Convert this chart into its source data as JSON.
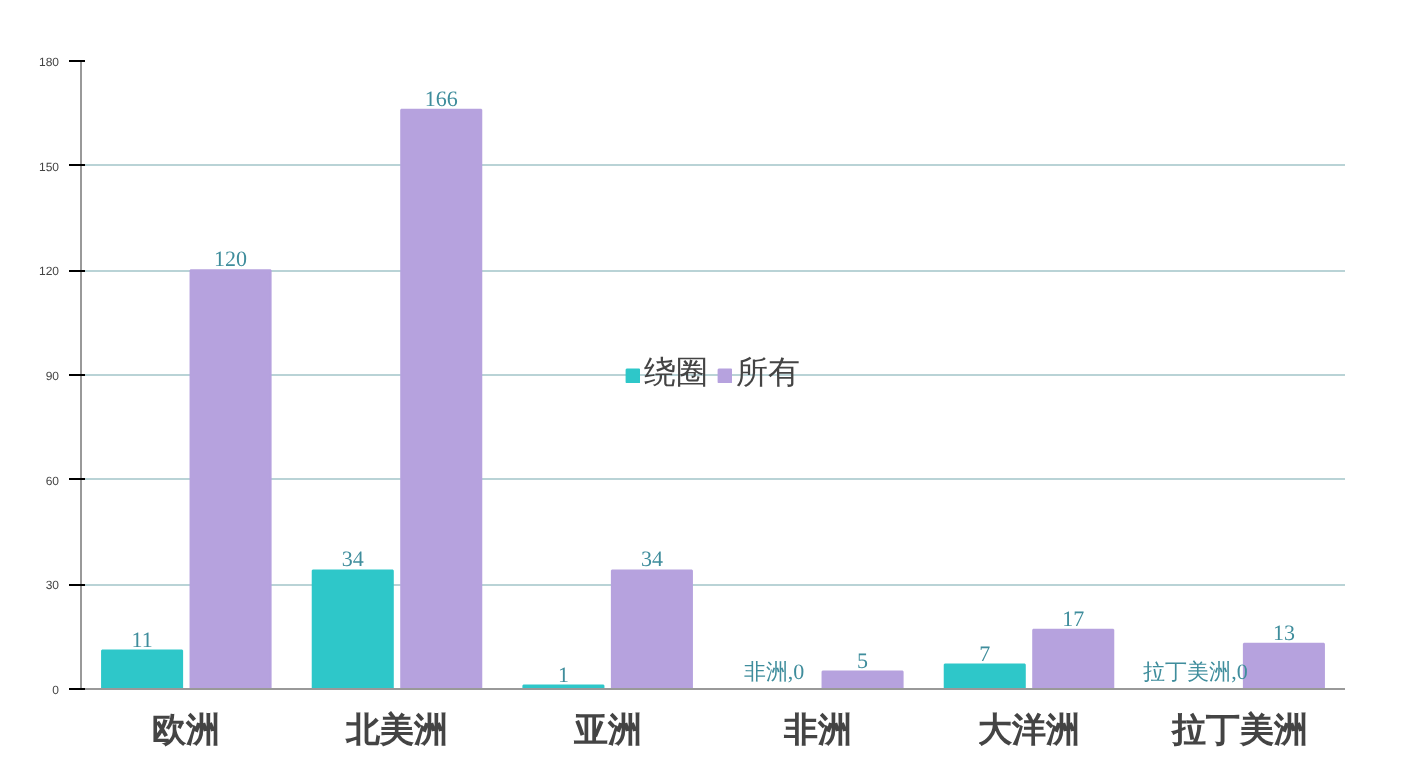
{
  "chart_data": {
    "type": "bar",
    "categories": [
      "欧洲",
      "北美洲",
      "亚洲",
      "非洲",
      "大洋洲",
      "拉丁美洲"
    ],
    "series": [
      {
        "name": "绕圈",
        "color": "#2ec7c9",
        "values": [
          11,
          34,
          1,
          0,
          7,
          0
        ],
        "value_labels": [
          "11",
          "34",
          "1",
          "非洲,0",
          "7",
          "拉丁美洲,0"
        ]
      },
      {
        "name": "所有",
        "color": "#b6a2de",
        "values": [
          120,
          166,
          34,
          5,
          17,
          13
        ],
        "value_labels": [
          "120",
          "166",
          "34",
          "5",
          "17",
          "13"
        ]
      }
    ],
    "ylim": [
      0,
      180
    ],
    "yticks": [
      0,
      30,
      60,
      90,
      120,
      150,
      180
    ],
    "grid": "y",
    "legend": "center"
  }
}
